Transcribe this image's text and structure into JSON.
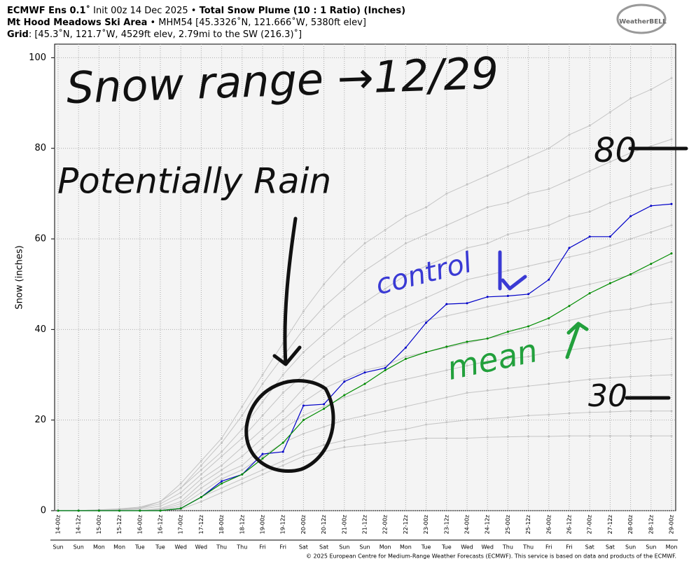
{
  "chart_data": {
    "type": "line",
    "title_lines": [
      [
        "ECMWF Ens 0.1˚",
        " Init 00z 14 Dec 2025 • ",
        "Total Snow Plume (10 : 1 Ratio) (Inches)"
      ],
      [
        "Mt Hood Meadows Ski Area",
        " • MHM54 [45.3326˚N, 121.666˚W, 5380ft elev]"
      ],
      [
        "Grid",
        ": [45.3˚N, 121.7˚W, 4529ft elev, 2.79mi to the SW (216.3)˚]"
      ]
    ],
    "logo": "WeatherBELL",
    "ylabel": "Snow (inches)",
    "footer": "© 2025 European Centre for Medium-Range Weather Forecasts (ECMWF). This service is based on data and products of the ECMWF.",
    "categories": [
      "14-00z",
      "14-12z",
      "15-00z",
      "15-12z",
      "16-00z",
      "16-12z",
      "17-00z",
      "17-12z",
      "18-00z",
      "18-12z",
      "19-00z",
      "19-12z",
      "20-00z",
      "20-12z",
      "21-00z",
      "21-12z",
      "22-00z",
      "22-12z",
      "23-00z",
      "23-12z",
      "24-00z",
      "24-12z",
      "25-00z",
      "25-12z",
      "26-00z",
      "26-12z",
      "27-00z",
      "27-12z",
      "28-00z",
      "28-12z",
      "29-00z"
    ],
    "days": [
      "Sun",
      "Sun",
      "Mon",
      "Mon",
      "Tue",
      "Tue",
      "Wed",
      "Wed",
      "Thu",
      "Thu",
      "Fri",
      "Fri",
      "Sat",
      "Sat",
      "Sun",
      "Sun",
      "Mon",
      "Mon",
      "Tue",
      "Tue",
      "Wed",
      "Wed",
      "Thu",
      "Thu",
      "Fri",
      "Fri",
      "Sat",
      "Sat",
      "Sun",
      "Sun",
      "Mon"
    ],
    "ylim": [
      0,
      103
    ],
    "yticks": [
      0,
      20,
      40,
      60,
      80,
      100
    ],
    "grid": true,
    "series": [
      {
        "color": "#c4c4c4",
        "values": [
          0,
          0,
          0,
          0,
          0,
          0,
          0.3,
          2,
          4,
          6,
          8,
          10,
          12,
          13,
          14,
          14.5,
          15,
          15.5,
          16,
          16,
          16,
          16.2,
          16.3,
          16.4,
          16.4,
          16.5,
          16.5,
          16.5,
          16.5,
          16.5,
          16.5
        ]
      },
      {
        "color": "#c4c4c4",
        "values": [
          0,
          0,
          0,
          0,
          0,
          0,
          0.5,
          3,
          5,
          7,
          9,
          11,
          13,
          14.5,
          15.5,
          16.5,
          17.5,
          18,
          19,
          19.5,
          20,
          20.3,
          20.6,
          21,
          21.2,
          21.5,
          21.7,
          21.8,
          22,
          22,
          22
        ]
      },
      {
        "color": "#c4c4c4",
        "values": [
          0,
          0,
          0,
          0,
          0,
          0.2,
          1,
          4,
          7,
          9,
          12,
          15,
          17,
          18.5,
          20,
          21,
          22,
          23,
          24,
          25,
          26,
          26.5,
          27,
          27.5,
          28,
          28.5,
          29,
          29.3,
          29.6,
          29.8,
          30
        ]
      },
      {
        "color": "#c4c4c4",
        "values": [
          0,
          0,
          0,
          0,
          0,
          0.3,
          1.5,
          5,
          8,
          10,
          14,
          18,
          21,
          23,
          25,
          26.5,
          28,
          29,
          30,
          31,
          32,
          33,
          33.5,
          34,
          35,
          35.5,
          36,
          36.5,
          37,
          37.5,
          38
        ]
      },
      {
        "color": "#c4c4c4",
        "values": [
          0,
          0,
          0,
          0,
          0,
          0.5,
          2,
          6,
          9,
          12,
          16,
          20,
          24,
          27,
          29,
          31,
          32,
          34,
          35,
          36,
          37,
          38,
          39,
          40,
          41,
          42,
          43,
          44,
          44.5,
          45.5,
          46
        ]
      },
      {
        "color": "#c4c4c4",
        "values": [
          0,
          0,
          0,
          0.2,
          0.3,
          1,
          3,
          7,
          10,
          14,
          18,
          22,
          27,
          31,
          34,
          36,
          38,
          40,
          42,
          43,
          44,
          45,
          46,
          47,
          48,
          49,
          50,
          51,
          52,
          53.5,
          55
        ]
      },
      {
        "color": "#c4c4c4",
        "values": [
          0,
          0,
          0,
          0.2,
          0.5,
          1.5,
          4,
          8,
          12,
          16,
          21,
          26,
          30,
          34,
          37,
          40,
          43,
          45,
          47,
          49,
          51,
          52,
          53,
          54,
          55,
          56,
          57,
          58.5,
          60,
          61.5,
          63
        ]
      },
      {
        "color": "#c4c4c4",
        "values": [
          0,
          0,
          0,
          0.3,
          0.5,
          2,
          5,
          9,
          13,
          18,
          24,
          30,
          35,
          39,
          43,
          46,
          49,
          52,
          54,
          56,
          58,
          59,
          61,
          62,
          63,
          65,
          66,
          68,
          69.5,
          71,
          72
        ]
      },
      {
        "color": "#c4c4c4",
        "values": [
          0,
          0,
          0.2,
          0.3,
          0.6,
          2,
          5,
          10,
          15,
          21,
          28,
          34,
          40,
          45,
          49,
          53,
          56,
          59,
          61,
          63,
          65,
          67,
          68,
          70,
          71,
          73,
          75,
          77,
          79,
          80.5,
          82
        ]
      },
      {
        "color": "#c4c4c4",
        "values": [
          0,
          0,
          0.2,
          0.4,
          0.8,
          2,
          6,
          11,
          16,
          23,
          30,
          37,
          44,
          50,
          55,
          59,
          62,
          65,
          67,
          70,
          72,
          74,
          76,
          78,
          80,
          83,
          85,
          88,
          91,
          93,
          95.5
        ]
      },
      {
        "color": "#0000c8",
        "values": [
          0,
          0,
          0,
          0,
          0,
          0,
          0.5,
          3,
          6.5,
          8,
          12.5,
          13,
          23.2,
          23.5,
          28.5,
          30.5,
          31.5,
          36,
          41.5,
          45.6,
          45.8,
          47.2,
          47.4,
          47.8,
          51,
          58,
          60.5,
          60.5,
          65,
          67.3,
          67.7
        ]
      },
      {
        "color": "#008c00",
        "values": [
          0,
          0,
          0,
          0,
          0,
          0,
          0.5,
          3,
          6,
          8,
          11.5,
          15,
          20,
          22.5,
          25.5,
          28,
          31,
          33.5,
          35,
          36.2,
          37.3,
          38,
          39.5,
          40.7,
          42.5,
          45.2,
          48,
          50.2,
          52.2,
          54.5,
          56.8
        ]
      }
    ],
    "annotations": [
      {
        "text": "Snow range →12/29",
        "color": "#111111"
      },
      {
        "text": "80",
        "color": "#111111"
      },
      {
        "text": "Potentially Rain",
        "color": "#111111"
      },
      {
        "text": "control",
        "color": "#3a3ad4"
      },
      {
        "text": "mean",
        "color": "#22a03c"
      },
      {
        "text": "30",
        "color": "#111111"
      }
    ]
  }
}
